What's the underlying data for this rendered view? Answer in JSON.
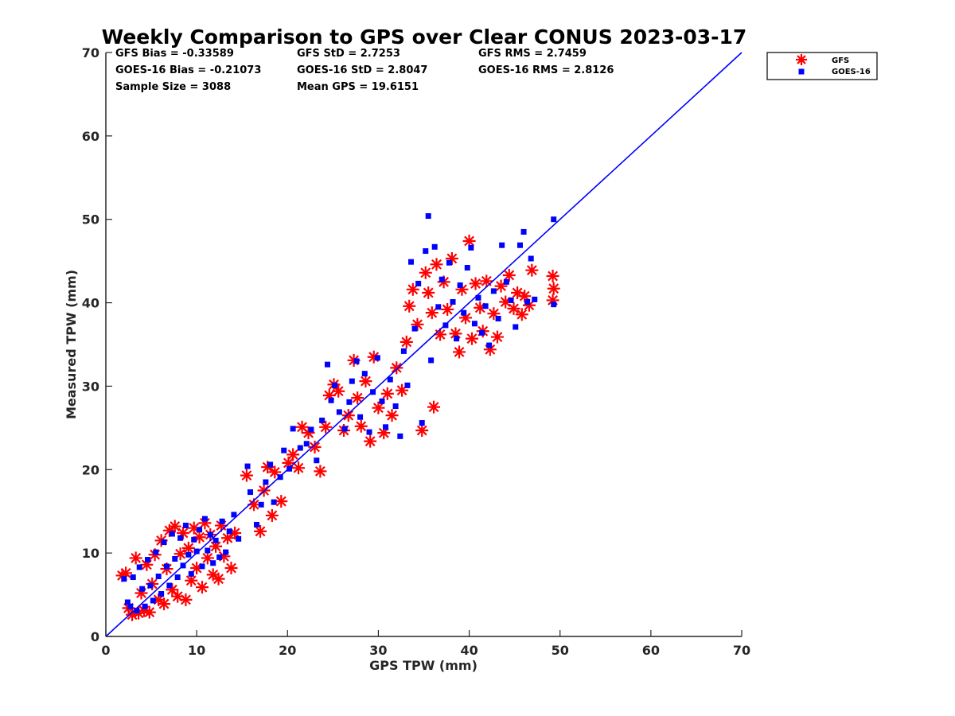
{
  "chart_data": {
    "type": "scatter",
    "title": "Weekly Comparison to GPS over Clear CONUS 2023-03-17",
    "xlabel": "GPS TPW (mm)",
    "ylabel": "Measured TPW (mm)",
    "xlim": [
      0,
      70
    ],
    "ylim": [
      0,
      70
    ],
    "xticks": [
      0,
      10,
      20,
      30,
      40,
      50,
      60,
      70
    ],
    "yticks": [
      0,
      10,
      20,
      30,
      40,
      50,
      60,
      70
    ],
    "grid": false,
    "legend_position": "outside-top-right",
    "reference_line": {
      "x": [
        0,
        70
      ],
      "y": [
        0,
        70
      ],
      "color": "#0000ff"
    },
    "stats": [
      [
        "GFS Bias = -0.33589",
        "GFS StD = 2.7253",
        "GFS RMS = 2.7459"
      ],
      [
        "GOES-16 Bias = -0.21073",
        "GOES-16 StD = 2.8047",
        "GOES-16 RMS = 2.8126"
      ],
      [
        "Sample Size = 3088",
        "Mean GPS = 19.6151",
        ""
      ]
    ],
    "series": [
      {
        "name": "GFS",
        "marker": "asterisk",
        "color": "#ff0000",
        "points": [
          [
            1.8,
            7.3
          ],
          [
            2.2,
            7.6
          ],
          [
            2.5,
            3.4
          ],
          [
            2.9,
            2.6
          ],
          [
            3.3,
            9.4
          ],
          [
            3.6,
            2.8
          ],
          [
            3.9,
            5.2
          ],
          [
            4.2,
            3.1
          ],
          [
            4.5,
            8.6
          ],
          [
            4.8,
            2.9
          ],
          [
            5.1,
            6.3
          ],
          [
            5.4,
            9.8
          ],
          [
            5.8,
            4.4
          ],
          [
            6.1,
            11.5
          ],
          [
            6.4,
            3.9
          ],
          [
            6.7,
            8.1
          ],
          [
            7.0,
            12.7
          ],
          [
            7.3,
            5.6
          ],
          [
            7.6,
            13.2
          ],
          [
            7.9,
            4.8
          ],
          [
            8.2,
            9.9
          ],
          [
            8.5,
            12.4
          ],
          [
            8.8,
            4.4
          ],
          [
            9.1,
            10.6
          ],
          [
            9.4,
            6.7
          ],
          [
            9.7,
            13.0
          ],
          [
            10.0,
            8.2
          ],
          [
            10.3,
            11.9
          ],
          [
            10.6,
            5.9
          ],
          [
            10.9,
            13.6
          ],
          [
            11.2,
            9.4
          ],
          [
            11.5,
            12.2
          ],
          [
            11.8,
            7.4
          ],
          [
            12.1,
            10.8
          ],
          [
            12.4,
            6.9
          ],
          [
            12.7,
            13.3
          ],
          [
            13.0,
            9.6
          ],
          [
            13.4,
            11.8
          ],
          [
            13.8,
            8.2
          ],
          [
            14.2,
            12.4
          ],
          [
            15.5,
            19.3
          ],
          [
            16.3,
            15.8
          ],
          [
            17.0,
            12.6
          ],
          [
            17.4,
            17.5
          ],
          [
            17.8,
            20.3
          ],
          [
            18.3,
            14.5
          ],
          [
            18.6,
            19.7
          ],
          [
            19.3,
            16.2
          ],
          [
            20.1,
            20.8
          ],
          [
            20.6,
            21.8
          ],
          [
            21.2,
            20.2
          ],
          [
            21.6,
            25.1
          ],
          [
            22.3,
            24.4
          ],
          [
            23.0,
            22.7
          ],
          [
            23.6,
            19.8
          ],
          [
            24.2,
            25.1
          ],
          [
            24.6,
            28.9
          ],
          [
            25.1,
            30.2
          ],
          [
            25.6,
            29.4
          ],
          [
            26.2,
            24.7
          ],
          [
            26.7,
            26.5
          ],
          [
            27.3,
            33.1
          ],
          [
            27.7,
            28.6
          ],
          [
            28.1,
            25.2
          ],
          [
            28.6,
            30.6
          ],
          [
            29.1,
            23.4
          ],
          [
            29.5,
            33.5
          ],
          [
            30.0,
            27.4
          ],
          [
            30.6,
            24.4
          ],
          [
            31.0,
            29.1
          ],
          [
            31.5,
            26.5
          ],
          [
            32.0,
            32.2
          ],
          [
            32.6,
            29.5
          ],
          [
            33.1,
            35.3
          ],
          [
            33.4,
            39.6
          ],
          [
            33.8,
            41.6
          ],
          [
            34.3,
            37.4
          ],
          [
            34.8,
            24.7
          ],
          [
            35.2,
            43.6
          ],
          [
            35.5,
            41.2
          ],
          [
            35.9,
            38.8
          ],
          [
            36.1,
            27.5
          ],
          [
            36.4,
            44.6
          ],
          [
            36.8,
            36.2
          ],
          [
            37.2,
            42.5
          ],
          [
            37.6,
            39.2
          ],
          [
            38.1,
            45.3
          ],
          [
            38.5,
            36.3
          ],
          [
            38.9,
            34.1
          ],
          [
            39.2,
            41.6
          ],
          [
            39.6,
            38.2
          ],
          [
            40.0,
            47.4
          ],
          [
            40.3,
            35.7
          ],
          [
            40.7,
            42.3
          ],
          [
            41.2,
            39.4
          ],
          [
            41.5,
            36.6
          ],
          [
            41.9,
            42.6
          ],
          [
            42.3,
            34.4
          ],
          [
            42.7,
            38.7
          ],
          [
            43.1,
            35.9
          ],
          [
            43.5,
            42.0
          ],
          [
            44.0,
            40.1
          ],
          [
            44.4,
            43.3
          ],
          [
            44.9,
            39.3
          ],
          [
            45.3,
            41.2
          ],
          [
            45.8,
            38.6
          ],
          [
            46.1,
            40.8
          ],
          [
            46.6,
            39.7
          ],
          [
            46.9,
            43.9
          ],
          [
            49.2,
            43.2
          ],
          [
            49.2,
            40.3
          ],
          [
            49.3,
            41.7
          ]
        ]
      },
      {
        "name": "GOES-16",
        "marker": "square",
        "color": "#0000ff",
        "points": [
          [
            2.0,
            6.9
          ],
          [
            2.4,
            4.1
          ],
          [
            2.7,
            3.6
          ],
          [
            3.0,
            7.1
          ],
          [
            3.4,
            3.1
          ],
          [
            3.7,
            8.3
          ],
          [
            4.0,
            5.7
          ],
          [
            4.3,
            3.6
          ],
          [
            4.6,
            9.2
          ],
          [
            4.9,
            6.1
          ],
          [
            5.2,
            4.3
          ],
          [
            5.5,
            10.1
          ],
          [
            5.8,
            7.2
          ],
          [
            6.1,
            5.1
          ],
          [
            6.4,
            11.3
          ],
          [
            6.7,
            8.4
          ],
          [
            7.0,
            6.1
          ],
          [
            7.3,
            12.3
          ],
          [
            7.6,
            9.3
          ],
          [
            7.9,
            7.1
          ],
          [
            8.2,
            11.8
          ],
          [
            8.5,
            8.5
          ],
          [
            8.8,
            13.3
          ],
          [
            9.1,
            9.8
          ],
          [
            9.4,
            7.5
          ],
          [
            9.7,
            11.6
          ],
          [
            10.0,
            10.2
          ],
          [
            10.3,
            12.8
          ],
          [
            10.6,
            8.4
          ],
          [
            10.9,
            14.1
          ],
          [
            11.2,
            10.3
          ],
          [
            11.5,
            12.2
          ],
          [
            11.8,
            8.8
          ],
          [
            12.1,
            11.5
          ],
          [
            12.5,
            9.5
          ],
          [
            12.8,
            13.8
          ],
          [
            13.2,
            10.1
          ],
          [
            13.6,
            12.6
          ],
          [
            14.1,
            14.6
          ],
          [
            14.6,
            11.7
          ],
          [
            15.6,
            20.4
          ],
          [
            15.9,
            17.3
          ],
          [
            16.6,
            13.4
          ],
          [
            17.1,
            15.8
          ],
          [
            17.6,
            18.5
          ],
          [
            18.1,
            20.6
          ],
          [
            18.5,
            16.1
          ],
          [
            19.2,
            19.1
          ],
          [
            19.6,
            22.3
          ],
          [
            20.2,
            20.1
          ],
          [
            20.6,
            24.9
          ],
          [
            21.4,
            22.6
          ],
          [
            22.1,
            23.1
          ],
          [
            22.6,
            24.8
          ],
          [
            23.2,
            21.1
          ],
          [
            23.8,
            25.9
          ],
          [
            24.4,
            32.6
          ],
          [
            24.8,
            28.3
          ],
          [
            25.2,
            30.1
          ],
          [
            25.7,
            26.9
          ],
          [
            26.3,
            24.9
          ],
          [
            26.8,
            28.1
          ],
          [
            27.1,
            30.6
          ],
          [
            27.6,
            33.0
          ],
          [
            28.0,
            26.3
          ],
          [
            28.5,
            31.5
          ],
          [
            29.0,
            24.5
          ],
          [
            29.4,
            29.3
          ],
          [
            29.9,
            33.4
          ],
          [
            30.4,
            28.2
          ],
          [
            30.8,
            25.1
          ],
          [
            31.3,
            30.8
          ],
          [
            31.9,
            27.6
          ],
          [
            32.4,
            24.0
          ],
          [
            32.8,
            34.2
          ],
          [
            33.2,
            30.1
          ],
          [
            33.6,
            44.9
          ],
          [
            34.0,
            36.9
          ],
          [
            34.4,
            42.3
          ],
          [
            34.8,
            25.6
          ],
          [
            35.2,
            46.2
          ],
          [
            35.5,
            50.4
          ],
          [
            35.8,
            33.1
          ],
          [
            36.2,
            46.7
          ],
          [
            36.6,
            39.5
          ],
          [
            37.0,
            42.8
          ],
          [
            37.4,
            37.3
          ],
          [
            37.8,
            44.8
          ],
          [
            38.2,
            40.1
          ],
          [
            38.6,
            35.7
          ],
          [
            39.0,
            42.1
          ],
          [
            39.4,
            38.8
          ],
          [
            39.8,
            44.2
          ],
          [
            40.2,
            46.6
          ],
          [
            40.6,
            37.5
          ],
          [
            41.0,
            40.6
          ],
          [
            41.4,
            36.4
          ],
          [
            41.8,
            39.6
          ],
          [
            42.2,
            34.9
          ],
          [
            42.7,
            41.4
          ],
          [
            43.2,
            38.1
          ],
          [
            43.6,
            46.9
          ],
          [
            44.1,
            42.5
          ],
          [
            44.6,
            40.3
          ],
          [
            45.1,
            37.1
          ],
          [
            45.6,
            46.9
          ],
          [
            46.0,
            48.5
          ],
          [
            46.4,
            40.1
          ],
          [
            46.8,
            45.3
          ],
          [
            49.3,
            39.8
          ],
          [
            49.3,
            50.0
          ],
          [
            47.2,
            40.4
          ]
        ]
      }
    ]
  }
}
